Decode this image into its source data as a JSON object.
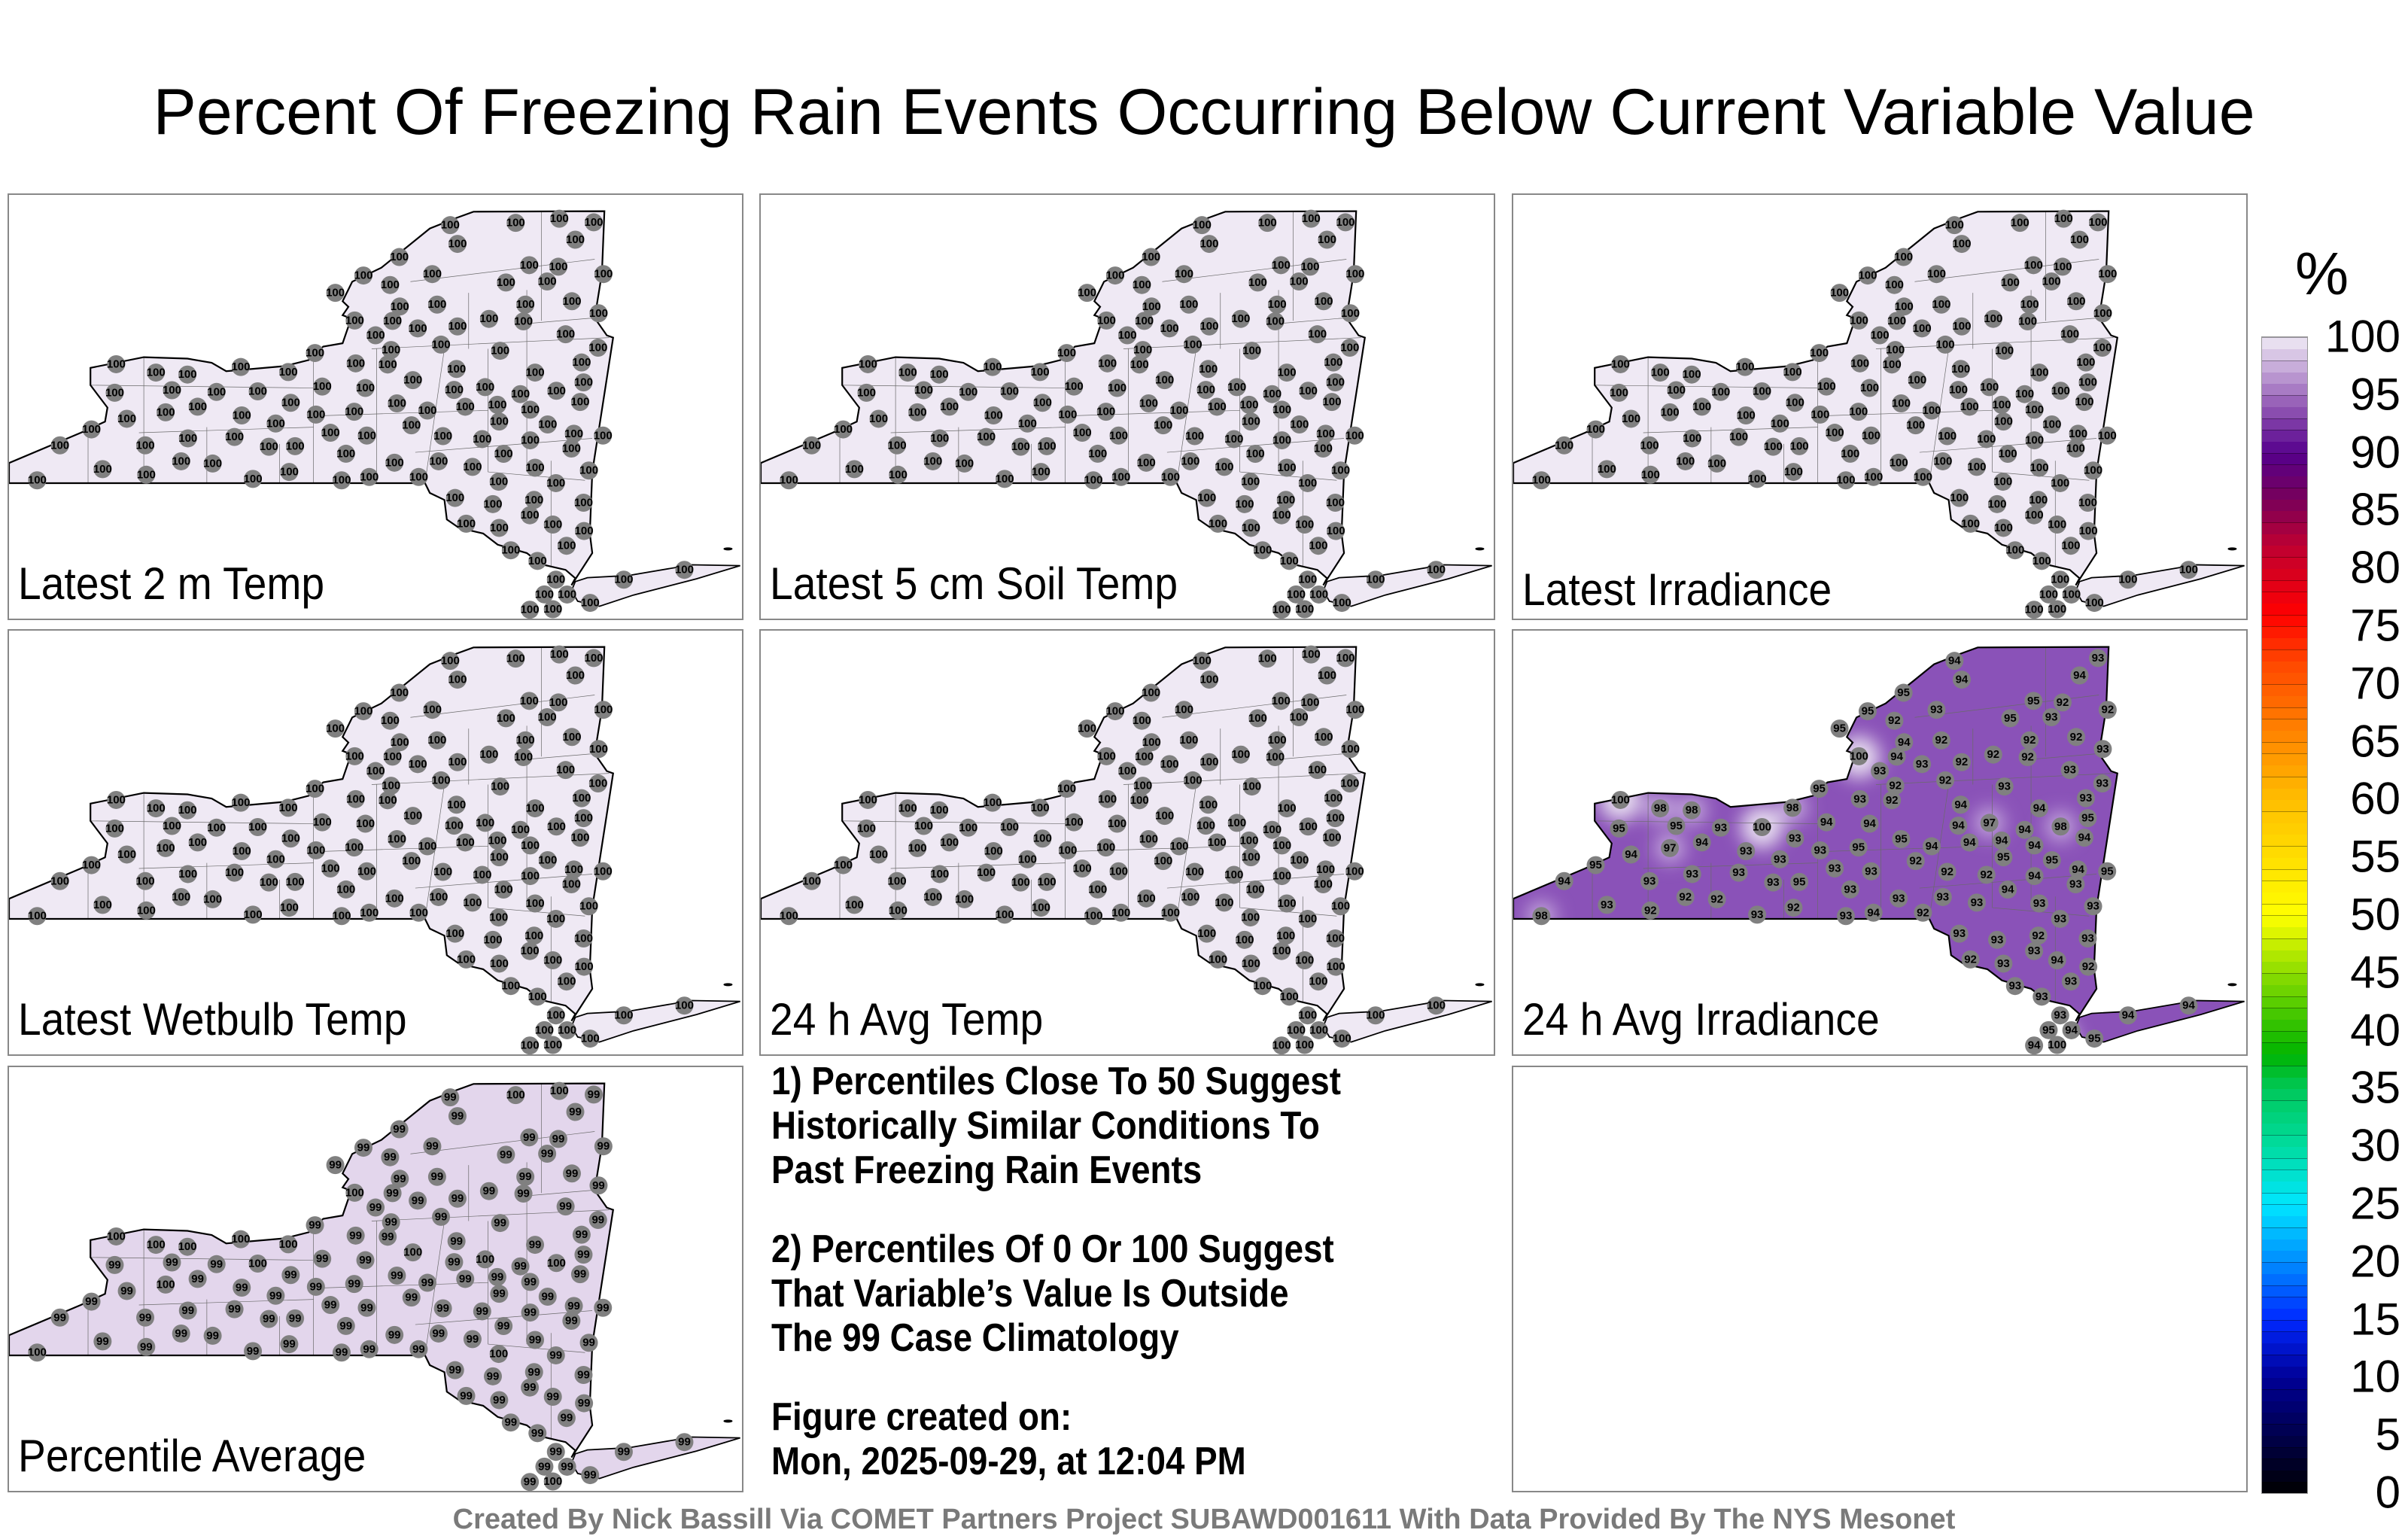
{
  "title": "Percent Of Freezing Rain Events Occurring Below Current Variable Value",
  "colors": {
    "station_marker": "#808080",
    "outline": "#000000",
    "county_lines": "#6a6a6a"
  },
  "panels": [
    {
      "label": "Latest 2 m Temp",
      "fill": "#efe9f4",
      "default_value": 100
    },
    {
      "label": "Latest 5 cm Soil Temp",
      "fill": "#efe9f4",
      "default_value": 100
    },
    {
      "label": "Latest Irradiance",
      "fill": "#efe9f4",
      "default_value": 100
    },
    {
      "label": "Latest Wetbulb Temp",
      "fill": "#efe9f4",
      "default_value": 100
    },
    {
      "label": "24 h Avg Temp",
      "fill": "#efe9f4",
      "default_value": 100
    },
    {
      "label": "24 h Avg Irradiance",
      "fill": "#8a52b8",
      "values": [
        94,
        94,
        95,
        95,
        95,
        92,
        93,
        94,
        100,
        94,
        93,
        93,
        92,
        92,
        92,
        92,
        92,
        95,
        95,
        92,
        93,
        94,
        93,
        92,
        92,
        92,
        92,
        93,
        93,
        93,
        93,
        93,
        95,
        93,
        92,
        94,
        94,
        95,
        98,
        94,
        97,
        94,
        94,
        94,
        94,
        94,
        95,
        95,
        94,
        93,
        95,
        94,
        92,
        92,
        94,
        94,
        95,
        92,
        94,
        95,
        94,
        93,
        93,
        93,
        93,
        93,
        93,
        93,
        93,
        93,
        93,
        93,
        92,
        94,
        93,
        92,
        93,
        95,
        93,
        93,
        93,
        93,
        100,
        98,
        93,
        94,
        97,
        95,
        98,
        98,
        100,
        95,
        94,
        95,
        94,
        98,
        93,
        92,
        93,
        93,
        92,
        92,
        93,
        93,
        92,
        93,
        93,
        94,
        92,
        92,
        93,
        93,
        93,
        93,
        93,
        95,
        94,
        94,
        100,
        95,
        94,
        94,
        null,
        null,
        null,
        null,
        null
      ]
    },
    {
      "label": "Percentile Average",
      "fill": "#e3d6ec",
      "values": [
        99,
        99,
        99,
        99,
        99,
        99,
        99,
        99,
        100,
        99,
        99,
        99,
        99,
        99,
        99,
        99,
        99,
        99,
        99,
        99,
        99,
        99,
        99,
        99,
        99,
        99,
        99,
        99,
        99,
        99,
        99,
        99,
        99,
        99,
        99,
        99,
        99,
        99,
        100,
        99,
        100,
        99,
        99,
        99,
        99,
        99,
        99,
        99,
        99,
        99,
        99,
        99,
        99,
        99,
        99,
        99,
        99,
        99,
        99,
        99,
        99,
        99,
        99,
        99,
        99,
        99,
        99,
        99,
        99,
        99,
        99,
        99,
        99,
        99,
        99,
        99,
        99,
        99,
        99,
        99,
        99,
        99,
        100,
        100,
        99,
        99,
        100,
        99,
        100,
        100,
        100,
        99,
        99,
        99,
        99,
        100,
        99,
        99,
        99,
        99,
        99,
        99,
        99,
        99,
        99,
        99,
        99,
        99,
        99,
        99,
        99,
        99,
        99,
        99,
        99,
        99,
        99,
        99,
        100,
        99,
        99,
        99,
        100,
        100,
        100,
        100,
        100
      ]
    }
  ],
  "notes": [
    [
      "1) Percentiles Close To 50 Suggest",
      "Historically Similar Conditions To",
      "Past Freezing Rain Events"
    ],
    [
      "2) Percentiles Of 0 Or 100 Suggest",
      "That Variable’s Value Is Outside",
      "The 99 Case Climatology"
    ],
    [
      "Figure created on:",
      "Mon, 2025-09-29, at 12:04 PM"
    ]
  ],
  "colorbar": {
    "unit": "%",
    "ticks": [
      "100",
      "95",
      "90",
      "85",
      "80",
      "75",
      "70",
      "65",
      "60",
      "55",
      "50",
      "45",
      "40",
      "35",
      "30",
      "25",
      "20",
      "15",
      "10",
      "5",
      "0"
    ],
    "range": [
      0,
      100
    ]
  },
  "footer": "Created By Nick Bassill Via COMET Partners Project SUBAWD001611 With Data Provided By The NYS Mesonet"
}
